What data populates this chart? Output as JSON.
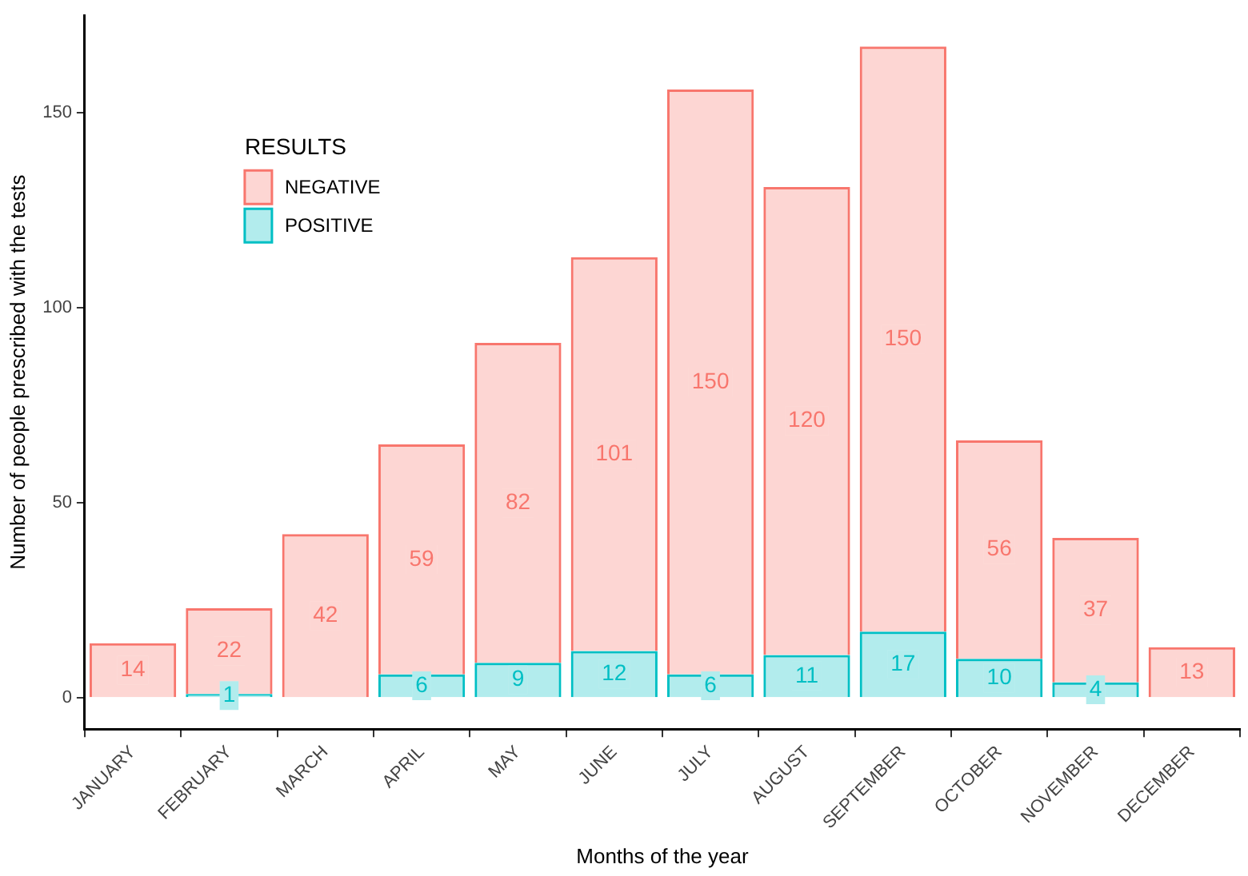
{
  "chart_data": {
    "type": "bar",
    "stacked": true,
    "xlabel": "Months of the year",
    "ylabel": "Number of people prescribed with the tests",
    "legend_title": "RESULTS",
    "legend": "top left",
    "grid": false,
    "data_labels": true,
    "categories": [
      "JANUARY",
      "FEBRUARY",
      "MARCH",
      "APRIL",
      "MAY",
      "JUNE",
      "JULY",
      "AUGUST",
      "SEPTEMBER",
      "OCTOBER",
      "NOVEMBER",
      "DECEMBER"
    ],
    "ylim": [
      -8,
      175
    ],
    "yticks": [
      0,
      50,
      100,
      150
    ],
    "series": [
      {
        "name": "POSITIVE",
        "color": "#00bfc4",
        "values": [
          null,
          1,
          null,
          6,
          9,
          12,
          6,
          11,
          17,
          10,
          4,
          null
        ]
      },
      {
        "name": "NEGATIVE",
        "color": "#f8766d",
        "values": [
          14,
          22,
          42,
          59,
          82,
          101,
          150,
          120,
          150,
          56,
          37,
          13
        ]
      }
    ]
  }
}
